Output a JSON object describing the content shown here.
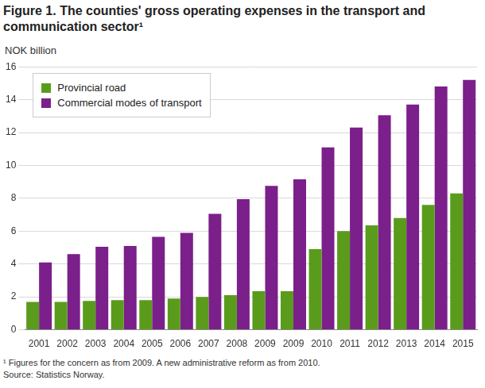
{
  "chart_data": {
    "type": "bar",
    "title": "Figure 1. The counties' gross operating expenses in the transport and communication sector¹",
    "y_label": "NOK billion",
    "categories": [
      "2001",
      "2002",
      "2003",
      "2004",
      "2005",
      "2006",
      "2007",
      "2008",
      "2009",
      "2009",
      "2010",
      "2011",
      "2012",
      "2013",
      "2014",
      "2015"
    ],
    "series": [
      {
        "name": "Provincial road",
        "color": "#5a9b1c",
        "values": [
          1.7,
          1.7,
          1.75,
          1.8,
          1.8,
          1.9,
          2.0,
          2.1,
          2.35,
          2.35,
          4.9,
          6.0,
          6.35,
          6.8,
          7.6,
          8.3
        ]
      },
      {
        "name": "Commercial modes of transport",
        "color": "#7b1f8b",
        "values": [
          4.1,
          4.6,
          5.05,
          5.1,
          5.65,
          5.9,
          7.05,
          7.95,
          8.75,
          9.15,
          11.1,
          12.3,
          13.05,
          13.7,
          14.8,
          15.2
        ]
      }
    ],
    "ylim": [
      0,
      16
    ],
    "yticks": [
      0,
      2,
      4,
      6,
      8,
      10,
      12,
      14,
      16
    ],
    "grid": true,
    "legend": "upper left",
    "annotations": [
      "¹  Figures for the concern as from 2009. A new administrative reform as from 2010.",
      "Source: Statistics Norway."
    ]
  }
}
